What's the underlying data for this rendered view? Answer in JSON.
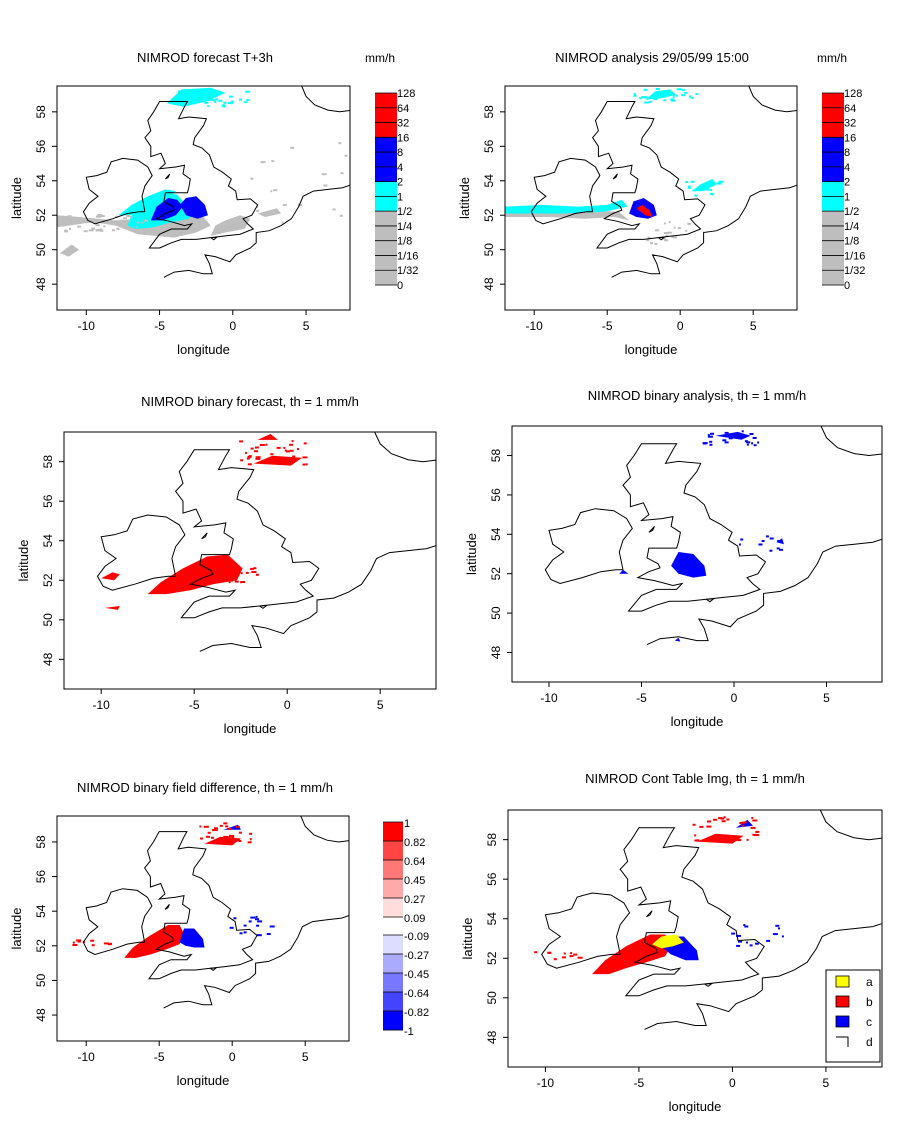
{
  "colors": {
    "red": "#ff0000",
    "blue": "#0000ff",
    "cyan": "#00ffff",
    "gray": "#bebebe",
    "yellow": "#ffff00",
    "coast": "#000000"
  },
  "axis_labels": {
    "x": "longitude",
    "y": "latitude"
  },
  "units": "mm/h",
  "panels": [
    {
      "id": "forecast",
      "title": "NIMROD forecast T+3h",
      "units": "mm/h",
      "x_ticks": [
        "-10",
        "-5",
        "0",
        "5"
      ],
      "y_ticks": [
        "48",
        "50",
        "52",
        "54",
        "56",
        "58"
      ],
      "xlim": [
        -12,
        8
      ],
      "ylim": [
        46.5,
        59.5
      ],
      "legend_type": "rain",
      "legend_labels": [
        "128",
        "64",
        "32",
        "16",
        "8",
        "4",
        "2",
        "1",
        "1/2",
        "1/4",
        "1/8",
        "1/16",
        "1/32",
        "0"
      ]
    },
    {
      "id": "analysis",
      "title": "NIMROD analysis 29/05/99 15:00",
      "units": "mm/h",
      "x_ticks": [
        "-10",
        "-5",
        "0",
        "5"
      ],
      "y_ticks": [
        "48",
        "50",
        "52",
        "54",
        "56",
        "58"
      ],
      "xlim": [
        -12,
        8
      ],
      "ylim": [
        46.5,
        59.5
      ],
      "legend_type": "rain",
      "legend_labels": [
        "128",
        "64",
        "32",
        "16",
        "8",
        "4",
        "2",
        "1",
        "1/2",
        "1/4",
        "1/8",
        "1/16",
        "1/32",
        "0"
      ]
    },
    {
      "id": "binary-forecast",
      "title": "NIMROD binary forecast, th = 1 mm/h",
      "x_ticks": [
        "-10",
        "-5",
        "0",
        "5"
      ],
      "y_ticks": [
        "48",
        "50",
        "52",
        "54",
        "56",
        "58"
      ],
      "xlim": [
        -12,
        8
      ],
      "ylim": [
        46.5,
        59.5
      ],
      "legend_type": "none"
    },
    {
      "id": "binary-analysis",
      "title": "NIMROD binary analysis, th = 1 mm/h",
      "x_ticks": [
        "-10",
        "-5",
        "0",
        "5"
      ],
      "y_ticks": [
        "48",
        "50",
        "52",
        "54",
        "56",
        "58"
      ],
      "xlim": [
        -12,
        8
      ],
      "ylim": [
        46.5,
        59.5
      ],
      "legend_type": "none"
    },
    {
      "id": "difference",
      "title": "NIMROD binary field difference, th = 1 mm/h",
      "x_ticks": [
        "-10",
        "-5",
        "0",
        "5"
      ],
      "y_ticks": [
        "48",
        "50",
        "52",
        "54",
        "56",
        "58"
      ],
      "xlim": [
        -12,
        8
      ],
      "ylim": [
        46.5,
        59.5
      ],
      "legend_type": "diff",
      "legend_labels": [
        "1",
        "0.82",
        "0.64",
        "0.45",
        "0.27",
        "0.09",
        "-0.09",
        "-0.27",
        "-0.45",
        "-0.64",
        "-0.82",
        "-1"
      ]
    },
    {
      "id": "cont-table",
      "title": "NIMROD Cont Table Img, th = 1 mm/h",
      "x_ticks": [
        "-10",
        "-5",
        "0",
        "5"
      ],
      "y_ticks": [
        "48",
        "50",
        "52",
        "54",
        "56",
        "58"
      ],
      "xlim": [
        -12,
        8
      ],
      "ylim": [
        46.5,
        59.5
      ],
      "legend_type": "cont",
      "legend_entries": [
        {
          "label": "a",
          "color": "#ffff00"
        },
        {
          "label": "b",
          "color": "#ff0000"
        },
        {
          "label": "c",
          "color": "#0000ff"
        },
        {
          "label": "d",
          "color": "none"
        }
      ]
    }
  ]
}
